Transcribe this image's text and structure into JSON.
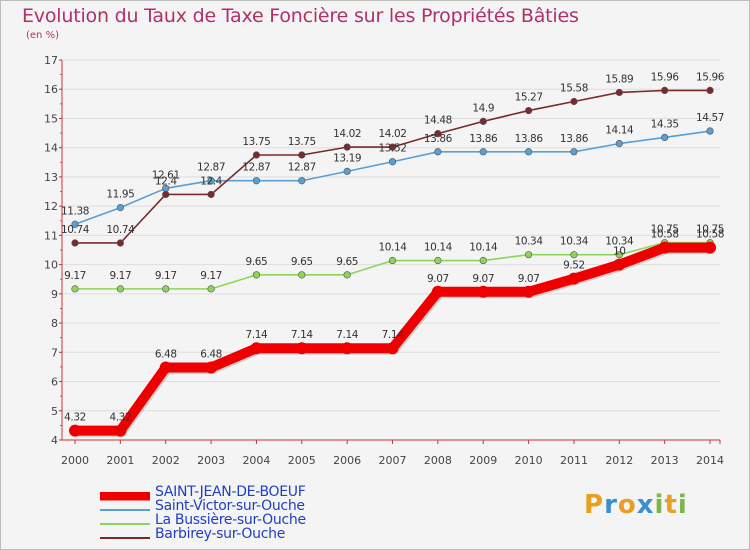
{
  "title": "Evolution du Taux de Taxe Foncière sur les Propriétés Bâties",
  "unit": "(en %)",
  "logo": {
    "letters": [
      "P",
      "r",
      "o",
      "x",
      "i",
      "t",
      "i"
    ],
    "colors": [
      "#e8a020",
      "#3a8fd0",
      "#e8a020",
      "#3a8fd0",
      "#7ab648",
      "#e8a020",
      "#7ab648"
    ]
  },
  "chart_data": {
    "type": "line",
    "x": [
      "2000",
      "2001",
      "2002",
      "2003",
      "2004",
      "2005",
      "2006",
      "2007",
      "2008",
      "2009",
      "2010",
      "2011",
      "2012",
      "2013",
      "2014"
    ],
    "ylim": [
      4,
      17
    ],
    "yticks": [
      "4",
      "5",
      "6",
      "7",
      "8",
      "9",
      "10",
      "11",
      "12",
      "13",
      "14",
      "15",
      "16",
      "17"
    ],
    "series": [
      {
        "name": "SAINT-JEAN-DE-BOEUF",
        "color": "#ee0000",
        "values": [
          4.32,
          4.32,
          6.48,
          6.48,
          7.14,
          7.14,
          7.14,
          7.14,
          9.07,
          9.07,
          9.07,
          9.52,
          10,
          10.58,
          10.58
        ],
        "labels": [
          "4.32",
          "4.32",
          "6.48",
          "6.48",
          "7.14",
          "7.14",
          "7.14",
          "7.14",
          "9.07",
          "9.07",
          "9.07",
          "9.52",
          "10",
          "10.58",
          "10.58"
        ]
      },
      {
        "name": "Saint-Victor-sur-Ouche",
        "color": "#5a9fd4",
        "values": [
          11.38,
          11.95,
          12.61,
          12.87,
          12.87,
          12.87,
          13.19,
          13.52,
          13.86,
          13.86,
          13.86,
          13.86,
          14.14,
          14.35,
          14.57
        ],
        "labels": [
          "11.38",
          "11.95",
          "12.61",
          "12.87",
          "12.87",
          "12.87",
          "13.19",
          "13.52",
          "13.86",
          "13.86",
          "13.86",
          "13.86",
          "14.14",
          "14.35",
          "14.57"
        ]
      },
      {
        "name": "La Bussière-sur-Ouche",
        "color": "#8fd45a",
        "values": [
          9.17,
          9.17,
          9.17,
          9.17,
          9.65,
          9.65,
          9.65,
          10.14,
          10.14,
          10.14,
          10.34,
          10.34,
          10.34,
          10.75,
          10.75
        ],
        "labels": [
          "9.17",
          "9.17",
          "9.17",
          "9.17",
          "9.65",
          "9.65",
          "9.65",
          "10.14",
          "10.14",
          "10.14",
          "10.34",
          "10.34",
          "10.34",
          "10.75",
          "10.75"
        ]
      },
      {
        "name": "Barbirey-sur-Ouche",
        "color": "#7a2a2a",
        "values": [
          10.74,
          10.74,
          12.4,
          12.4,
          13.75,
          13.75,
          14.02,
          14.02,
          14.48,
          14.9,
          15.27,
          15.58,
          15.89,
          15.96,
          15.96
        ],
        "labels": [
          "10.74",
          "10.74",
          "12.4",
          "12.4",
          "13.75",
          "13.75",
          "14.02",
          "14.02",
          "14.48",
          "14.9",
          "15.27",
          "15.58",
          "15.89",
          "15.96",
          "15.96"
        ]
      }
    ]
  }
}
